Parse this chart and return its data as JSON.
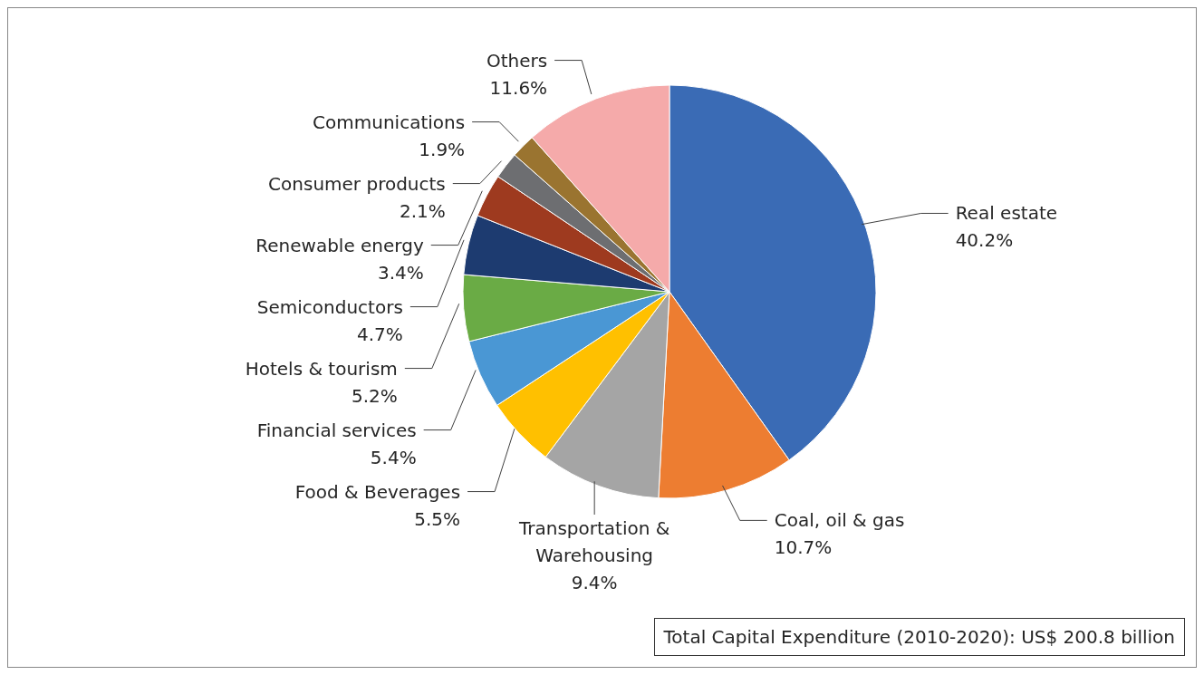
{
  "chart_data": {
    "type": "pie",
    "categories": [
      "Real estate",
      "Coal, oil & gas",
      "Transportation & Warehousing",
      "Food & Beverages",
      "Financial services",
      "Hotels & tourism",
      "Semiconductors",
      "Renewable energy",
      "Consumer products",
      "Communications",
      "Others"
    ],
    "values": [
      40.2,
      10.7,
      9.4,
      5.5,
      5.4,
      5.2,
      4.7,
      3.4,
      2.1,
      1.9,
      11.6
    ],
    "value_labels": [
      "40.2%",
      "10.7%",
      "9.4%",
      "5.5%",
      "5.4%",
      "5.2%",
      "4.7%",
      "3.4%",
      "2.1%",
      "1.9%",
      "11.6%"
    ],
    "colors": [
      "#3a6bb5",
      "#ed7d31",
      "#a5a5a5",
      "#ffc000",
      "#4a97d4",
      "#6aab45",
      "#1d3b70",
      "#9e3a1f",
      "#6d6e71",
      "#9a7430",
      "#f5aaaa"
    ],
    "annotations": [
      "Total Capital Expenditure (2010-2020): US$ 200.8 billion"
    ]
  }
}
